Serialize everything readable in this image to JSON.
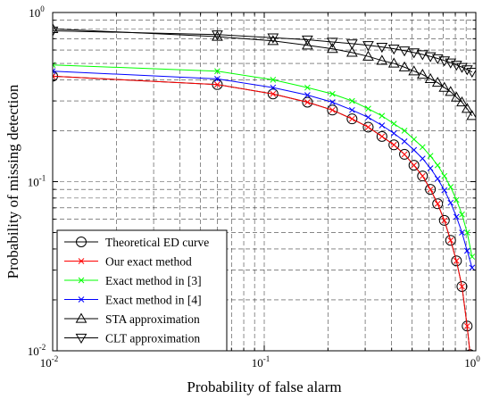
{
  "chart_data": {
    "type": "line",
    "title": "",
    "xlabel": "Probability of false alarm",
    "ylabel": "Probability of missing detection",
    "xscale": "log",
    "yscale": "log",
    "xlim": [
      0.01,
      1
    ],
    "ylim": [
      0.01,
      1
    ],
    "grid": true,
    "legend_position": "bottom-left",
    "x_ticks": [
      {
        "base": "10",
        "exp": "-2",
        "value": 0.01
      },
      {
        "base": "10",
        "exp": "-1",
        "value": 0.1
      },
      {
        "base": "10",
        "exp": "0",
        "value": 1
      }
    ],
    "y_ticks": [
      {
        "base": "10",
        "exp": "-2",
        "value": 0.01
      },
      {
        "base": "10",
        "exp": "-1",
        "value": 0.1
      },
      {
        "base": "10",
        "exp": "0",
        "value": 1
      }
    ],
    "series": [
      {
        "name": "Theoretical ED curve",
        "color": "#000000",
        "marker": "circle",
        "x": [
          0.01,
          0.06,
          0.11,
          0.16,
          0.21,
          0.26,
          0.31,
          0.36,
          0.41,
          0.46,
          0.51,
          0.56,
          0.61,
          0.66,
          0.71,
          0.76,
          0.81,
          0.86,
          0.91,
          0.94
        ],
        "y": [
          0.42,
          0.375,
          0.33,
          0.295,
          0.265,
          0.235,
          0.21,
          0.185,
          0.165,
          0.145,
          0.125,
          0.108,
          0.09,
          0.074,
          0.059,
          0.045,
          0.034,
          0.024,
          0.014,
          0.0095
        ]
      },
      {
        "name": "Our exact method",
        "color": "#ff0000",
        "marker": "x",
        "x": [
          0.01,
          0.06,
          0.11,
          0.16,
          0.21,
          0.26,
          0.31,
          0.36,
          0.41,
          0.46,
          0.51,
          0.56,
          0.61,
          0.66,
          0.71,
          0.76,
          0.81,
          0.86,
          0.91,
          0.94
        ],
        "y": [
          0.42,
          0.375,
          0.33,
          0.295,
          0.265,
          0.235,
          0.21,
          0.185,
          0.165,
          0.145,
          0.125,
          0.108,
          0.09,
          0.074,
          0.059,
          0.045,
          0.034,
          0.024,
          0.014,
          0.0095
        ]
      },
      {
        "name": "Exact method in [3]",
        "color": "#00ff00",
        "marker": "x",
        "x": [
          0.01,
          0.06,
          0.11,
          0.16,
          0.21,
          0.26,
          0.31,
          0.36,
          0.41,
          0.46,
          0.51,
          0.56,
          0.61,
          0.66,
          0.71,
          0.76,
          0.81,
          0.86,
          0.91,
          0.96
        ],
        "y": [
          0.49,
          0.45,
          0.4,
          0.36,
          0.33,
          0.3,
          0.27,
          0.245,
          0.22,
          0.2,
          0.178,
          0.16,
          0.142,
          0.125,
          0.108,
          0.093,
          0.078,
          0.064,
          0.05,
          0.036
        ]
      },
      {
        "name": "Exact method in [4]",
        "color": "#0000ff",
        "marker": "x",
        "x": [
          0.01,
          0.06,
          0.11,
          0.16,
          0.21,
          0.26,
          0.31,
          0.36,
          0.41,
          0.46,
          0.51,
          0.56,
          0.61,
          0.66,
          0.71,
          0.76,
          0.81,
          0.86,
          0.91,
          0.96
        ],
        "y": [
          0.45,
          0.405,
          0.36,
          0.325,
          0.295,
          0.265,
          0.24,
          0.215,
          0.193,
          0.173,
          0.154,
          0.137,
          0.12,
          0.104,
          0.089,
          0.075,
          0.062,
          0.05,
          0.039,
          0.031
        ]
      },
      {
        "name": "STA approximation",
        "color": "#000000",
        "marker": "triangle-up",
        "x": [
          0.01,
          0.06,
          0.11,
          0.16,
          0.21,
          0.26,
          0.31,
          0.36,
          0.41,
          0.46,
          0.51,
          0.56,
          0.61,
          0.66,
          0.71,
          0.76,
          0.81,
          0.86,
          0.91,
          0.96
        ],
        "y": [
          0.8,
          0.72,
          0.68,
          0.64,
          0.61,
          0.58,
          0.55,
          0.52,
          0.5,
          0.475,
          0.45,
          0.43,
          0.405,
          0.385,
          0.36,
          0.34,
          0.315,
          0.295,
          0.27,
          0.245
        ]
      },
      {
        "name": "CLT approximation",
        "color": "#000000",
        "marker": "triangle-down",
        "x": [
          0.01,
          0.06,
          0.11,
          0.16,
          0.21,
          0.26,
          0.31,
          0.36,
          0.41,
          0.46,
          0.51,
          0.56,
          0.61,
          0.66,
          0.71,
          0.76,
          0.81,
          0.86,
          0.91,
          0.96
        ],
        "y": [
          0.78,
          0.74,
          0.71,
          0.69,
          0.67,
          0.655,
          0.64,
          0.625,
          0.61,
          0.595,
          0.58,
          0.565,
          0.55,
          0.535,
          0.52,
          0.505,
          0.49,
          0.475,
          0.46,
          0.445
        ]
      }
    ]
  }
}
